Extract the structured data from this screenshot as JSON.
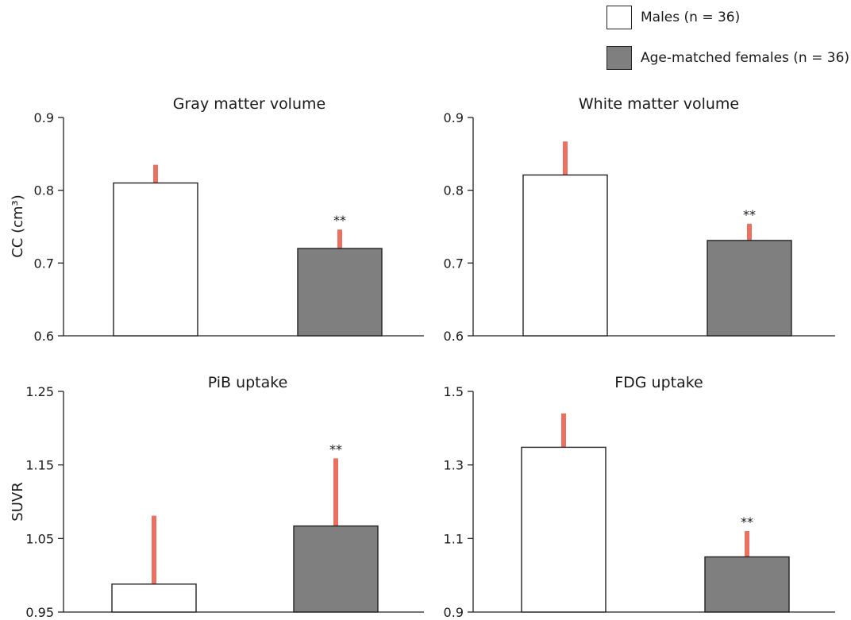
{
  "legend": {
    "items": [
      {
        "label": "Males (n = 36)",
        "fill": "#ffffff"
      },
      {
        "label": "Age-matched females (n = 36)",
        "fill": "#7f7f7f"
      }
    ]
  },
  "colors": {
    "male_bar": "#ffffff",
    "female_bar": "#7f7f7f",
    "error_bar": "#ec6f5f",
    "axis": "#222222"
  },
  "chart_data": [
    {
      "type": "bar",
      "title": "Gray matter volume",
      "ylabel": "CC (cm³)",
      "ylim": [
        0.6,
        0.9
      ],
      "yticks": [
        "0.9",
        "0.8",
        "0.7",
        "0.6"
      ],
      "ytick_values": [
        0.9,
        0.8,
        0.7,
        0.6
      ],
      "series": [
        {
          "name": "Males (n = 36)",
          "value": 0.81,
          "error_top": 0.835,
          "annotation": ""
        },
        {
          "name": "Age-matched females (n = 36)",
          "value": 0.72,
          "error_top": 0.746,
          "annotation": "**"
        }
      ]
    },
    {
      "type": "bar",
      "title": "White matter volume",
      "ylabel": "",
      "ylim": [
        0.6,
        0.9
      ],
      "yticks": [
        "0.9",
        "0.8",
        "0.7",
        "0.6"
      ],
      "ytick_values": [
        0.9,
        0.8,
        0.7,
        0.6
      ],
      "series": [
        {
          "name": "Males (n = 36)",
          "value": 0.821,
          "error_top": 0.867,
          "annotation": ""
        },
        {
          "name": "Age-matched females (n = 36)",
          "value": 0.731,
          "error_top": 0.754,
          "annotation": "**"
        }
      ]
    },
    {
      "type": "bar",
      "title": "PiB uptake",
      "ylabel": "SUVR",
      "ylim": [
        0.95,
        1.25
      ],
      "yticks": [
        "1.25",
        "1.15",
        "1.05",
        "0.95"
      ],
      "ytick_values": [
        1.25,
        1.15,
        1.05,
        0.95
      ],
      "series": [
        {
          "name": "Males (n = 36)",
          "value": 0.988,
          "error_top": 1.081,
          "annotation": ""
        },
        {
          "name": "Age-matched females (n = 36)",
          "value": 1.067,
          "error_top": 1.159,
          "annotation": "**"
        }
      ]
    },
    {
      "type": "bar",
      "title": "FDG uptake",
      "ylabel": "",
      "ylim": [
        0.9,
        1.5
      ],
      "yticks": [
        "1.5",
        "1.3",
        "1.1",
        "0.9"
      ],
      "ytick_values": [
        1.5,
        1.3,
        1.1,
        0.9
      ],
      "series": [
        {
          "name": "Males (n = 36)",
          "value": 1.348,
          "error_top": 1.44,
          "annotation": ""
        },
        {
          "name": "Age-matched females (n = 36)",
          "value": 1.05,
          "error_top": 1.12,
          "annotation": "**"
        }
      ]
    }
  ]
}
